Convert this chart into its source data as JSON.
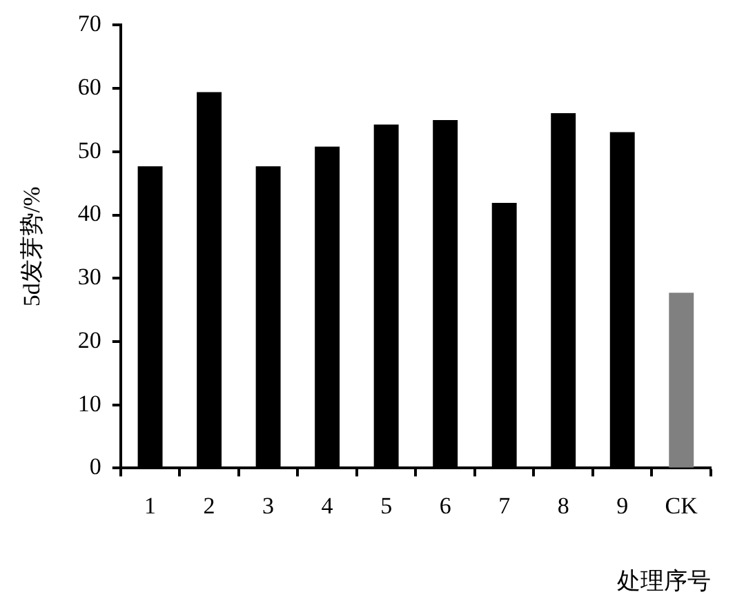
{
  "chart_data": {
    "type": "bar",
    "xlabel": "处理序号",
    "ylabel": "5d发芽势/%",
    "categories": [
      "1",
      "2",
      "3",
      "4",
      "5",
      "6",
      "7",
      "8",
      "9",
      "CK"
    ],
    "values": [
      47.7,
      59.4,
      47.7,
      50.8,
      54.3,
      55.0,
      41.9,
      56.1,
      53.1,
      27.7
    ],
    "colors": [
      "#000000",
      "#000000",
      "#000000",
      "#000000",
      "#000000",
      "#000000",
      "#000000",
      "#000000",
      "#000000",
      "#808080"
    ],
    "ylim": [
      0,
      70
    ],
    "yticks": [
      0,
      10,
      20,
      30,
      40,
      50,
      60,
      70
    ],
    "grid": false,
    "legend": false
  }
}
